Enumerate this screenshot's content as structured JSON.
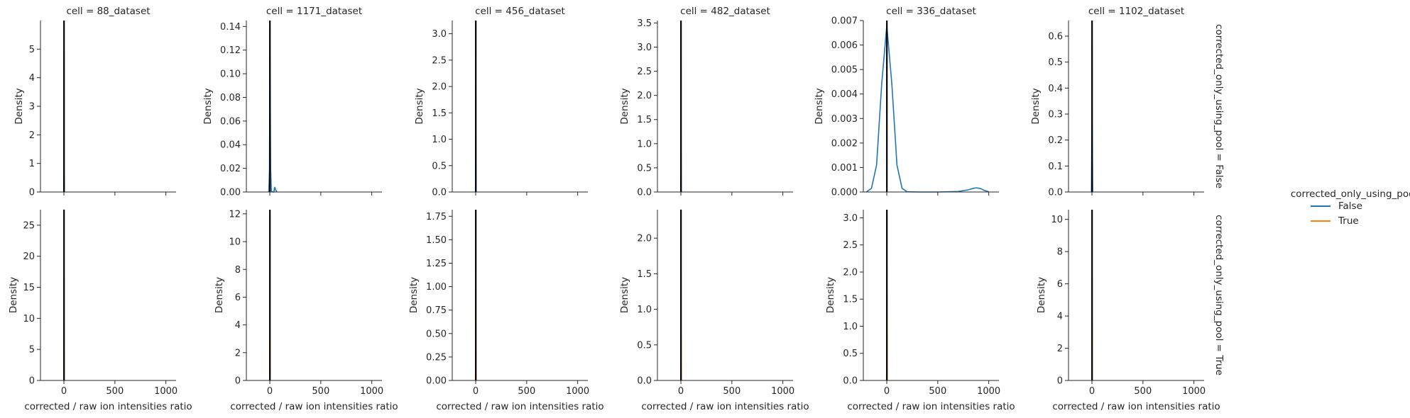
{
  "colors": {
    "False": "#1f77b4",
    "True": "#ff7f0e",
    "vline": "#000000",
    "axis": "#262626"
  },
  "chart_data": {
    "type": "line",
    "kind": "kde-facet-grid",
    "xlabel": "corrected / raw ion intensities ratio",
    "ylabel": "Density",
    "xlim": [
      -230,
      1100
    ],
    "x_ticks": [
      0,
      500,
      1000
    ],
    "x_tick_labels": [
      "0",
      "500",
      "1000"
    ],
    "vline_at": 1,
    "row_var": "corrected_only_using_pool",
    "rows": [
      {
        "value": "False",
        "title": "corrected_only_using_pool = False"
      },
      {
        "value": "True",
        "title": "corrected_only_using_pool = True"
      }
    ],
    "columns": [
      {
        "title": "cell = 88_dataset"
      },
      {
        "title": "cell = 1171_dataset"
      },
      {
        "title": "cell = 456_dataset"
      },
      {
        "title": "cell = 482_dataset"
      },
      {
        "title": "cell = 336_dataset"
      },
      {
        "title": "cell = 1102_dataset"
      }
    ],
    "legend": {
      "title": "corrected_only_using_pool",
      "placement": "right",
      "entries": [
        {
          "label": "False",
          "color": "#1f77b4"
        },
        {
          "label": "True",
          "color": "#ff7f0e"
        }
      ]
    },
    "panels": [
      {
        "row": 0,
        "col": 0,
        "ylim": [
          0,
          6
        ],
        "y_ticks": [
          0,
          1,
          2,
          3,
          4,
          5
        ],
        "y_tick_labels": [
          "0",
          "1",
          "2",
          "3",
          "4",
          "5"
        ],
        "series": [
          {
            "name": "False",
            "x": [
              -2,
              0,
              1,
              2,
              3,
              5
            ],
            "y": [
              0,
              1.5,
              5.7,
              3.0,
              0.4,
              0
            ]
          }
        ]
      },
      {
        "row": 0,
        "col": 1,
        "ylim": [
          0,
          0.145
        ],
        "y_ticks": [
          0,
          0.02,
          0.04,
          0.06,
          0.08,
          0.1,
          0.12,
          0.14
        ],
        "y_tick_labels": [
          "0.00",
          "0.02",
          "0.04",
          "0.06",
          "0.08",
          "0.10",
          "0.12",
          "0.14"
        ],
        "series": [
          {
            "name": "False",
            "x": [
              -10,
              -3,
              0,
              1,
              3,
              8,
              15,
              25,
              40,
              45,
              50,
              55,
              70
            ],
            "y": [
              0,
              0.02,
              0.1,
              0.14,
              0.1,
              0.02,
              0.001,
              0,
              0,
              0.003,
              0.004,
              0.002,
              0
            ]
          }
        ]
      },
      {
        "row": 0,
        "col": 2,
        "ylim": [
          0,
          3.25
        ],
        "y_ticks": [
          0,
          0.5,
          1,
          1.5,
          2,
          2.5,
          3
        ],
        "y_tick_labels": [
          "0.0",
          "0.5",
          "1.0",
          "1.5",
          "2.0",
          "2.5",
          "3.0"
        ],
        "series": [
          {
            "name": "False",
            "x": [
              -2,
              0,
              1,
              2,
              4
            ],
            "y": [
              0,
              1.0,
              3.2,
              1.0,
              0
            ]
          }
        ]
      },
      {
        "row": 0,
        "col": 3,
        "ylim": [
          0,
          3.55
        ],
        "y_ticks": [
          0,
          0.5,
          1,
          1.5,
          2,
          2.5,
          3,
          3.5
        ],
        "y_tick_labels": [
          "0.0",
          "0.5",
          "1.0",
          "1.5",
          "2.0",
          "2.5",
          "3.0",
          "3.5"
        ],
        "series": [
          {
            "name": "False",
            "x": [
              -2,
              0,
              1,
              2,
              4
            ],
            "y": [
              0,
              1.2,
              3.5,
              1.2,
              0
            ]
          }
        ]
      },
      {
        "row": 0,
        "col": 4,
        "ylim": [
          0,
          0.007
        ],
        "y_ticks": [
          0,
          0.001,
          0.002,
          0.003,
          0.004,
          0.005,
          0.006,
          0.007
        ],
        "y_tick_labels": [
          "0.000",
          "0.001",
          "0.002",
          "0.003",
          "0.004",
          "0.005",
          "0.006",
          "0.007"
        ],
        "series": [
          {
            "name": "False",
            "x": [
              -200,
              -150,
              -100,
              -50,
              0,
              50,
              100,
              150,
              200,
              300,
              500,
              700,
              800,
              850,
              880,
              920,
              960,
              1000
            ],
            "y": [
              0,
              0.00015,
              0.0011,
              0.0044,
              0.0068,
              0.0044,
              0.0011,
              0.00015,
              1e-05,
              0,
              0,
              2e-05,
              9e-05,
              0.00015,
              0.00017,
              0.00014,
              6e-05,
              1e-05
            ]
          }
        ]
      },
      {
        "row": 0,
        "col": 5,
        "ylim": [
          0,
          0.66
        ],
        "y_ticks": [
          0,
          0.1,
          0.2,
          0.3,
          0.4,
          0.5,
          0.6
        ],
        "y_tick_labels": [
          "0.0",
          "0.1",
          "0.2",
          "0.3",
          "0.4",
          "0.5",
          "0.6"
        ],
        "series": [
          {
            "name": "False",
            "x": [
              -5,
              0,
              1,
              2,
              7
            ],
            "y": [
              0,
              0.3,
              0.65,
              0.3,
              0
            ]
          }
        ]
      },
      {
        "row": 1,
        "col": 0,
        "ylim": [
          0,
          27.5
        ],
        "y_ticks": [
          0,
          5,
          10,
          15,
          20,
          25
        ],
        "y_tick_labels": [
          "0",
          "5",
          "10",
          "15",
          "20",
          "25"
        ],
        "series": [
          {
            "name": "True",
            "x": [
              -1,
              0.5,
              1,
              1.5,
              3
            ],
            "y": [
              0,
              10,
              27.5,
              10,
              0
            ]
          }
        ]
      },
      {
        "row": 1,
        "col": 1,
        "ylim": [
          0,
          12.3
        ],
        "y_ticks": [
          0,
          2,
          4,
          6,
          8,
          10,
          12
        ],
        "y_tick_labels": [
          "0",
          "2",
          "4",
          "6",
          "8",
          "10",
          "12"
        ],
        "series": [
          {
            "name": "True",
            "x": [
              -1,
              0.5,
              1,
              1.5,
              3
            ],
            "y": [
              0,
              5,
              12.2,
              5,
              0
            ]
          }
        ]
      },
      {
        "row": 1,
        "col": 2,
        "ylim": [
          0,
          1.82
        ],
        "y_ticks": [
          0,
          0.25,
          0.5,
          0.75,
          1,
          1.25,
          1.5,
          1.75
        ],
        "y_tick_labels": [
          "0.00",
          "0.25",
          "0.50",
          "0.75",
          "1.00",
          "1.25",
          "1.50",
          "1.75"
        ],
        "series": [
          {
            "name": "True",
            "x": [
              -2,
              0,
              1,
              2,
              4
            ],
            "y": [
              0,
              0.6,
              1.8,
              0.6,
              0
            ]
          }
        ]
      },
      {
        "row": 1,
        "col": 3,
        "ylim": [
          0,
          2.4
        ],
        "y_ticks": [
          0,
          0.5,
          1,
          1.5,
          2
        ],
        "y_tick_labels": [
          "0.0",
          "0.5",
          "1.0",
          "1.5",
          "2.0"
        ],
        "series": [
          {
            "name": "True",
            "x": [
              -2,
              0,
              1,
              2,
              4
            ],
            "y": [
              0,
              0.8,
              2.4,
              0.8,
              0
            ]
          }
        ]
      },
      {
        "row": 1,
        "col": 4,
        "ylim": [
          0,
          3.15
        ],
        "y_ticks": [
          0,
          0.5,
          1,
          1.5,
          2,
          2.5,
          3
        ],
        "y_tick_labels": [
          "0.0",
          "0.5",
          "1.0",
          "1.5",
          "2.0",
          "2.5",
          "3.0"
        ],
        "series": [
          {
            "name": "True",
            "x": [
              -2,
              0,
              1,
              2,
              4
            ],
            "y": [
              0,
              1.0,
              3.1,
              1.0,
              0
            ]
          }
        ]
      },
      {
        "row": 1,
        "col": 5,
        "ylim": [
          0,
          10.6
        ],
        "y_ticks": [
          0,
          2,
          4,
          6,
          8,
          10
        ],
        "y_tick_labels": [
          "0",
          "2",
          "4",
          "6",
          "8",
          "10"
        ],
        "series": [
          {
            "name": "True",
            "x": [
              -1,
              0.5,
              1,
              1.5,
              3
            ],
            "y": [
              0,
              4,
              10.5,
              4,
              0
            ]
          }
        ]
      }
    ]
  }
}
